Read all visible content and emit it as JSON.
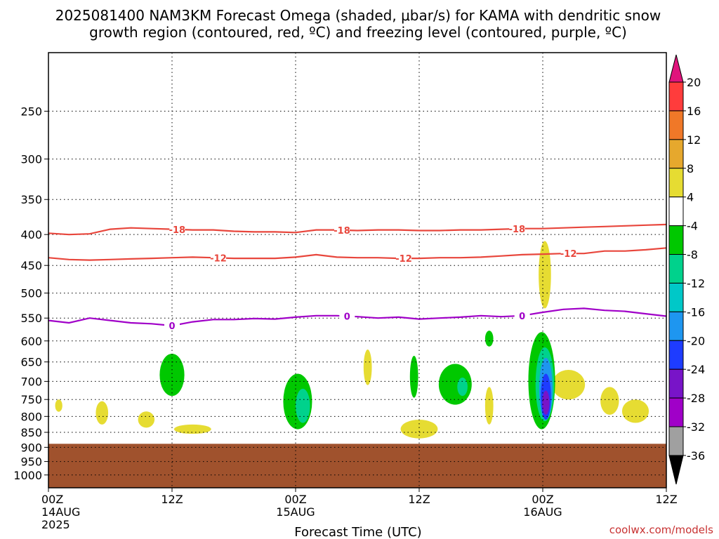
{
  "chart_data": {
    "type": "heatmap",
    "title_line1": "2025081400 NAM3KM Forecast Omega (shaded, μbar/s) for KAMA with dendritic snow",
    "title_line2": "growth region (contoured, red, ºC) and freezing level (contoured, purple, ºC)",
    "xlabel": "Forecast Time (UTC)",
    "credit": "coolwx.com/models",
    "x_range_hours": [
      0,
      60
    ],
    "y_axis": {
      "scale": "log-pressure",
      "range_hpa": [
        1050,
        200
      ],
      "ticks": [
        250,
        300,
        350,
        400,
        450,
        500,
        550,
        600,
        650,
        700,
        750,
        800,
        850,
        900,
        950,
        1000
      ]
    },
    "x_ticks": [
      {
        "hour": 0,
        "time": "00Z",
        "date": "14AUG",
        "year": "2025"
      },
      {
        "hour": 12,
        "time": "12Z",
        "date": "",
        "year": ""
      },
      {
        "hour": 24,
        "time": "00Z",
        "date": "15AUG",
        "year": ""
      },
      {
        "hour": 36,
        "time": "12Z",
        "date": "",
        "year": ""
      },
      {
        "hour": 48,
        "time": "00Z",
        "date": "16AUG",
        "year": ""
      },
      {
        "hour": 60,
        "time": "12Z",
        "date": "",
        "year": ""
      }
    ],
    "grid": true,
    "colorbar": {
      "position": "right",
      "labels": [
        "20",
        "16",
        "12",
        "8",
        "4",
        "-4",
        "-8",
        "-12",
        "-16",
        "-20",
        "-24",
        "-28",
        "-32",
        "-36"
      ],
      "colors": [
        "#ff3c3c",
        "#f07828",
        "#e6a82d",
        "#e6dc32",
        "#ffffff",
        "#00c800",
        "#00d28c",
        "#00c8c8",
        "#1e96f0",
        "#1e3cff",
        "#7814c8",
        "#a000c8",
        "#a0a0a0"
      ],
      "top_color": "#e0147c",
      "bottom_color": "#000000"
    },
    "ground": {
      "top_hpa": 888,
      "color": "#a0522d"
    },
    "contours": [
      {
        "temp_c": -18,
        "color": "#e8463c",
        "points": [
          [
            0,
            398
          ],
          [
            2,
            400
          ],
          [
            4,
            399
          ],
          [
            6,
            392
          ],
          [
            8,
            390
          ],
          [
            10,
            391
          ],
          [
            12,
            392
          ],
          [
            14,
            393
          ],
          [
            16,
            393
          ],
          [
            18,
            395
          ],
          [
            20,
            396
          ],
          [
            22,
            396
          ],
          [
            24,
            397
          ],
          [
            26,
            393
          ],
          [
            28,
            393
          ],
          [
            30,
            394
          ],
          [
            32,
            393
          ],
          [
            34,
            393
          ],
          [
            36,
            394
          ],
          [
            38,
            394
          ],
          [
            40,
            393
          ],
          [
            42,
            393
          ],
          [
            44,
            392
          ],
          [
            46,
            391
          ],
          [
            48,
            391
          ],
          [
            50,
            390
          ],
          [
            52,
            389
          ],
          [
            54,
            388
          ],
          [
            56,
            387
          ],
          [
            58,
            386
          ],
          [
            60,
            385
          ]
        ],
        "labels": [
          {
            "hour": 12.5,
            "text": "-18"
          },
          {
            "hour": 28.5,
            "text": "-18"
          },
          {
            "hour": 45.5,
            "text": "-18"
          }
        ]
      },
      {
        "temp_c": -12,
        "color": "#e8463c",
        "points": [
          [
            0,
            437
          ],
          [
            2,
            440
          ],
          [
            4,
            441
          ],
          [
            6,
            440
          ],
          [
            8,
            439
          ],
          [
            10,
            438
          ],
          [
            12,
            437
          ],
          [
            14,
            436
          ],
          [
            16,
            437
          ],
          [
            18,
            438
          ],
          [
            20,
            438
          ],
          [
            22,
            438
          ],
          [
            24,
            436
          ],
          [
            26,
            432
          ],
          [
            28,
            436
          ],
          [
            30,
            437
          ],
          [
            32,
            437
          ],
          [
            34,
            438
          ],
          [
            36,
            438
          ],
          [
            38,
            437
          ],
          [
            40,
            437
          ],
          [
            42,
            436
          ],
          [
            44,
            434
          ],
          [
            46,
            432
          ],
          [
            48,
            431
          ],
          [
            50,
            430
          ],
          [
            52,
            430
          ],
          [
            54,
            426
          ],
          [
            56,
            426
          ],
          [
            58,
            424
          ],
          [
            60,
            421
          ]
        ],
        "labels": [
          {
            "hour": 16.5,
            "text": "-12"
          },
          {
            "hour": 34.5,
            "text": "-12"
          },
          {
            "hour": 50.5,
            "text": "-12"
          }
        ]
      },
      {
        "temp_c": 0,
        "color": "#a000c8",
        "points": [
          [
            0,
            555
          ],
          [
            2,
            560
          ],
          [
            4,
            550
          ],
          [
            6,
            555
          ],
          [
            8,
            560
          ],
          [
            10,
            562
          ],
          [
            12,
            566
          ],
          [
            14,
            558
          ],
          [
            16,
            553
          ],
          [
            18,
            553
          ],
          [
            20,
            551
          ],
          [
            22,
            552
          ],
          [
            24,
            548
          ],
          [
            26,
            545
          ],
          [
            28,
            545
          ],
          [
            30,
            547
          ],
          [
            32,
            550
          ],
          [
            34,
            548
          ],
          [
            36,
            552
          ],
          [
            38,
            550
          ],
          [
            40,
            548
          ],
          [
            42,
            545
          ],
          [
            44,
            547
          ],
          [
            46,
            545
          ],
          [
            48,
            538
          ],
          [
            50,
            532
          ],
          [
            52,
            530
          ],
          [
            54,
            534
          ],
          [
            56,
            536
          ],
          [
            58,
            541
          ],
          [
            60,
            546
          ]
        ],
        "labels": [
          {
            "hour": 12,
            "text": "0"
          },
          {
            "hour": 29,
            "text": "0"
          },
          {
            "hour": 46,
            "text": "0"
          }
        ]
      }
    ],
    "omega_regions": [
      {
        "value_range": [
          4,
          8
        ],
        "color": "#e6dc32",
        "cx_h": 48.2,
        "cy_hpa": 470,
        "rx_h": 0.6,
        "ry_hpa": 60
      },
      {
        "value_range": [
          4,
          8
        ],
        "color": "#e6dc32",
        "cx_h": 1.0,
        "cy_hpa": 768,
        "rx_h": 0.35,
        "ry_hpa": 18
      },
      {
        "value_range": [
          4,
          8
        ],
        "color": "#e6dc32",
        "cx_h": 5.2,
        "cy_hpa": 790,
        "rx_h": 0.6,
        "ry_hpa": 35
      },
      {
        "value_range": [
          4,
          8
        ],
        "color": "#e6dc32",
        "cx_h": 9.5,
        "cy_hpa": 810,
        "rx_h": 0.8,
        "ry_hpa": 25
      },
      {
        "value_range": [
          4,
          8
        ],
        "color": "#e6dc32",
        "cx_h": 14.0,
        "cy_hpa": 840,
        "rx_h": 1.8,
        "ry_hpa": 15
      },
      {
        "value_range": [
          4,
          8
        ],
        "color": "#e6dc32",
        "cx_h": 31.0,
        "cy_hpa": 665,
        "rx_h": 0.4,
        "ry_hpa": 45
      },
      {
        "value_range": [
          4,
          8
        ],
        "color": "#e6dc32",
        "cx_h": 36.0,
        "cy_hpa": 840,
        "rx_h": 1.8,
        "ry_hpa": 30
      },
      {
        "value_range": [
          4,
          8
        ],
        "color": "#e6dc32",
        "cx_h": 42.8,
        "cy_hpa": 770,
        "rx_h": 0.4,
        "ry_hpa": 55
      },
      {
        "value_range": [
          4,
          8
        ],
        "color": "#e6dc32",
        "cx_h": 50.5,
        "cy_hpa": 710,
        "rx_h": 1.6,
        "ry_hpa": 40
      },
      {
        "value_range": [
          4,
          8
        ],
        "color": "#e6dc32",
        "cx_h": 54.5,
        "cy_hpa": 755,
        "rx_h": 0.9,
        "ry_hpa": 40
      },
      {
        "value_range": [
          4,
          8
        ],
        "color": "#e6dc32",
        "cx_h": 57.0,
        "cy_hpa": 785,
        "rx_h": 1.3,
        "ry_hpa": 35
      },
      {
        "value_range": [
          -8,
          -4
        ],
        "color": "#00c800",
        "cx_h": 12.0,
        "cy_hpa": 685,
        "rx_h": 1.2,
        "ry_hpa": 55
      },
      {
        "value_range": [
          -8,
          -4
        ],
        "color": "#00c800",
        "cx_h": 24.2,
        "cy_hpa": 760,
        "rx_h": 1.4,
        "ry_hpa": 80
      },
      {
        "value_range": [
          -8,
          -4
        ],
        "color": "#00c800",
        "cx_h": 35.5,
        "cy_hpa": 690,
        "rx_h": 0.4,
        "ry_hpa": 55
      },
      {
        "value_range": [
          -8,
          -4
        ],
        "color": "#00c800",
        "cx_h": 39.5,
        "cy_hpa": 710,
        "rx_h": 1.6,
        "ry_hpa": 55
      },
      {
        "value_range": [
          -8,
          -4
        ],
        "color": "#00c800",
        "cx_h": 42.8,
        "cy_hpa": 595,
        "rx_h": 0.4,
        "ry_hpa": 18
      },
      {
        "value_range": [
          -8,
          -4
        ],
        "color": "#00c800",
        "cx_h": 47.9,
        "cy_hpa": 710,
        "rx_h": 1.3,
        "ry_hpa": 130
      },
      {
        "value_range": [
          -12,
          -8
        ],
        "color": "#00d28c",
        "cx_h": 24.7,
        "cy_hpa": 770,
        "rx_h": 0.7,
        "ry_hpa": 50
      },
      {
        "value_range": [
          -12,
          -8
        ],
        "color": "#00d28c",
        "cx_h": 40.2,
        "cy_hpa": 715,
        "rx_h": 0.5,
        "ry_hpa": 25
      },
      {
        "value_range": [
          -12,
          -8
        ],
        "color": "#00d28c",
        "cx_h": 48.2,
        "cy_hpa": 715,
        "rx_h": 0.9,
        "ry_hpa": 100
      },
      {
        "value_range": [
          -16,
          -12
        ],
        "color": "#1e96f0",
        "cx_h": 48.3,
        "cy_hpa": 725,
        "rx_h": 0.65,
        "ry_hpa": 85
      },
      {
        "value_range": [
          -20,
          -16
        ],
        "color": "#1e3cff",
        "cx_h": 48.3,
        "cy_hpa": 745,
        "rx_h": 0.5,
        "ry_hpa": 65
      },
      {
        "value_range": [
          -28,
          -24
        ],
        "color": "#7814c8",
        "cx_h": 48.3,
        "cy_hpa": 760,
        "rx_h": 0.35,
        "ry_hpa": 35
      }
    ]
  }
}
